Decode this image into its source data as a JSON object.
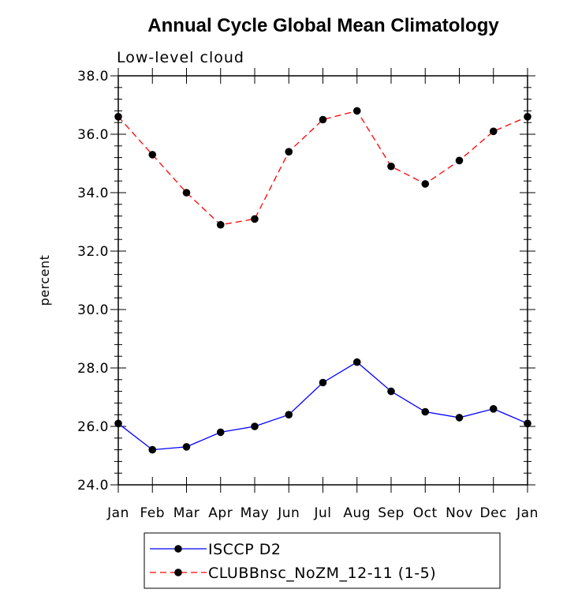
{
  "chart_data": {
    "type": "line",
    "title": "Annual Cycle Global Mean Climatology",
    "subtitle": "Low-level cloud",
    "xlabel": "",
    "ylabel": "percent",
    "categories": [
      "Jan",
      "Feb",
      "Mar",
      "Apr",
      "May",
      "Jun",
      "Jul",
      "Aug",
      "Sep",
      "Oct",
      "Nov",
      "Dec",
      "Jan"
    ],
    "ylim": [
      24.0,
      38.0
    ],
    "yticks": [
      "24.0",
      "26.0",
      "28.0",
      "30.0",
      "32.0",
      "34.0",
      "36.0",
      "38.0"
    ],
    "grid": false,
    "legend_position": "bottom",
    "series": [
      {
        "name": "ISCCP D2",
        "color": "#0000ff",
        "line_style": "solid",
        "marker": "filled-circle",
        "values": [
          26.1,
          25.2,
          25.3,
          25.8,
          26.0,
          26.4,
          27.5,
          28.2,
          27.2,
          26.5,
          26.3,
          26.6,
          26.1
        ]
      },
      {
        "name": "CLUBBnsc_NoZM_12-11 (1-5)",
        "color": "#ff0000",
        "line_style": "dashed",
        "marker": "filled-circle",
        "values": [
          36.6,
          35.3,
          34.0,
          32.9,
          33.1,
          35.4,
          36.5,
          36.8,
          34.9,
          34.3,
          35.1,
          36.1,
          36.6
        ]
      }
    ]
  }
}
